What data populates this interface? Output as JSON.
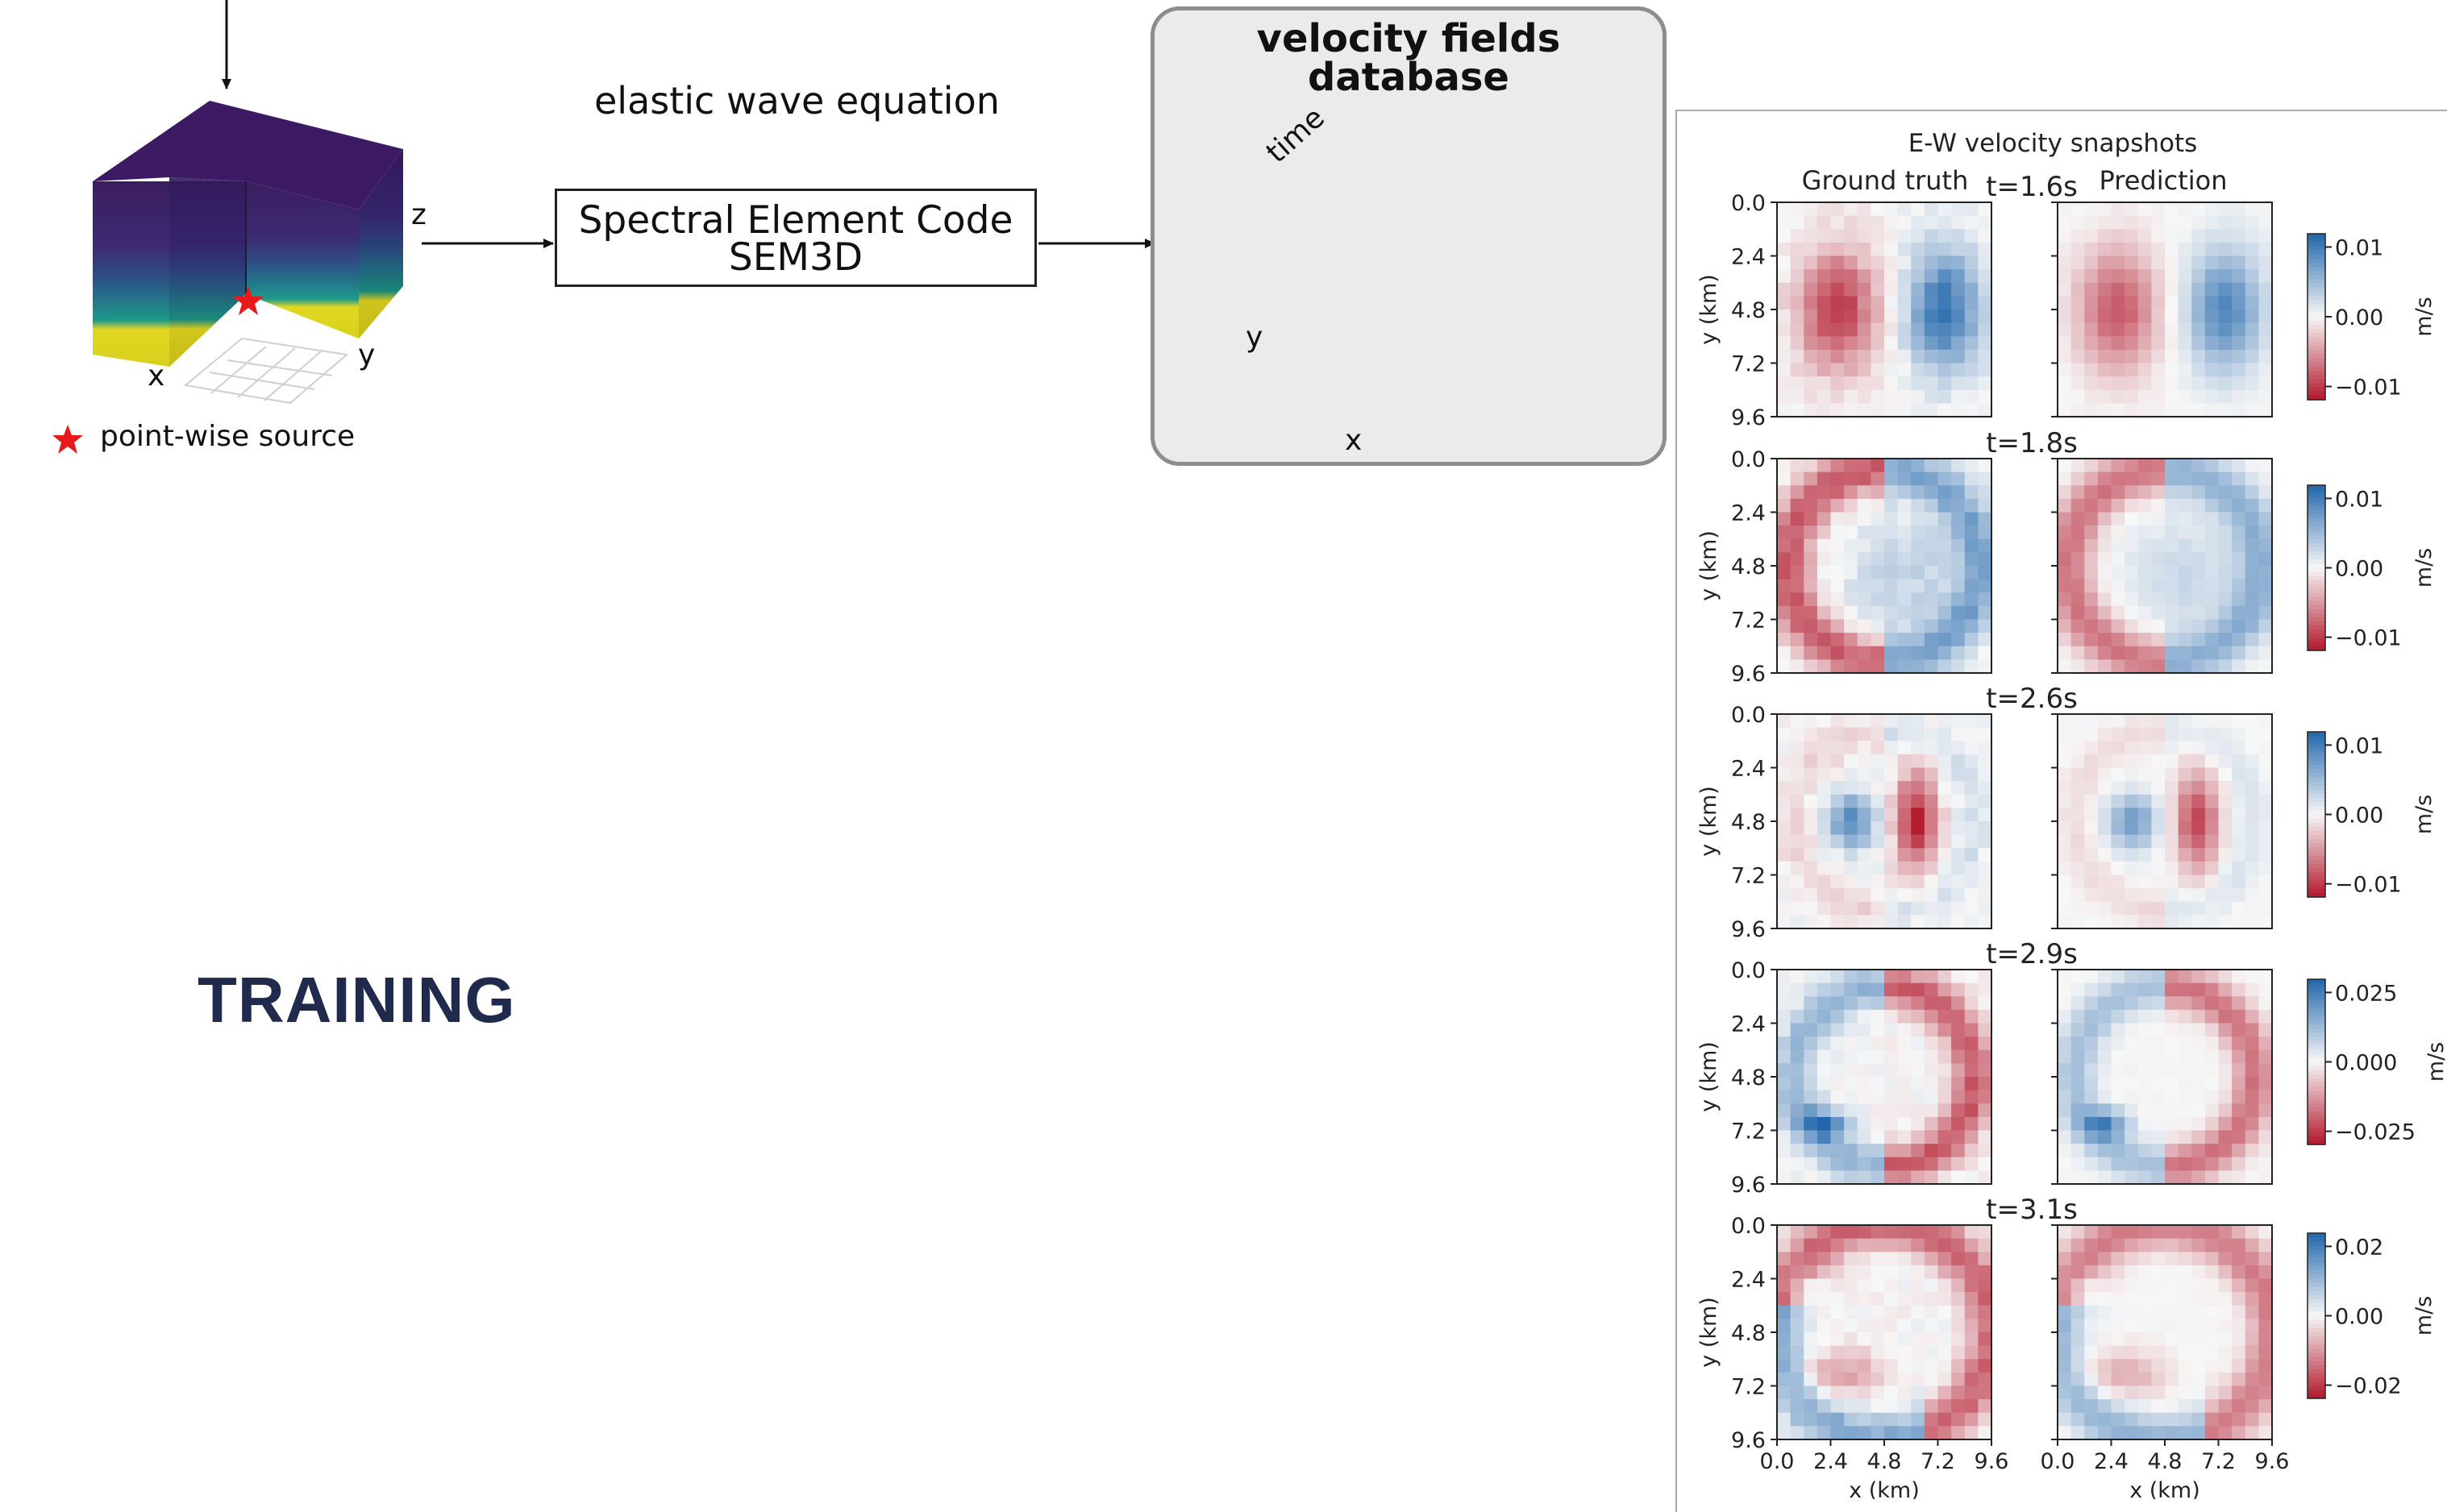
{
  "labels": {
    "z_axis": "z",
    "x_axis": "x",
    "y_axis": "y",
    "source_legend": "point-wise source",
    "wave_equation": "elastic wave equation",
    "sem_line1": "Spectral Element Code",
    "sem_line2": "SEM3D",
    "db_line1": "velocity fields",
    "db_line2": "database",
    "time_arrow": "time",
    "db_x": "x",
    "db_y": "y",
    "training": "TRAINING"
  },
  "snapshots": {
    "title": "E-W velocity snapshots",
    "col_ground_truth": "Ground truth",
    "col_prediction": "Prediction",
    "ylabel": "y (km)",
    "xlabel": "x (km)",
    "unit": "m/s",
    "ticks": [
      "0.0",
      "2.4",
      "4.8",
      "7.2",
      "9.6"
    ],
    "rows": [
      {
        "time": "t=1.6s",
        "cbar_ticks": [
          "0.01",
          "0.00",
          "−0.01"
        ]
      },
      {
        "time": "t=1.8s",
        "cbar_ticks": [
          "0.01",
          "0.00",
          "−0.01"
        ]
      },
      {
        "time": "t=2.6s",
        "cbar_ticks": [
          "0.01",
          "0.00",
          "−0.01"
        ]
      },
      {
        "time": "t=2.9s",
        "cbar_ticks": [
          "0.025",
          "0.000",
          "−0.025"
        ]
      },
      {
        "time": "t=3.1s",
        "cbar_ticks": [
          "0.02",
          "0.00",
          "−0.02"
        ]
      }
    ]
  },
  "colors": {
    "title_navy": "#1f2a4d",
    "source_star": "#e8191a",
    "panel_bg": "#ebebeb",
    "panel_border": "#8d8d8d",
    "neg_red": "#b2182b",
    "pos_blue": "#2166ac"
  }
}
